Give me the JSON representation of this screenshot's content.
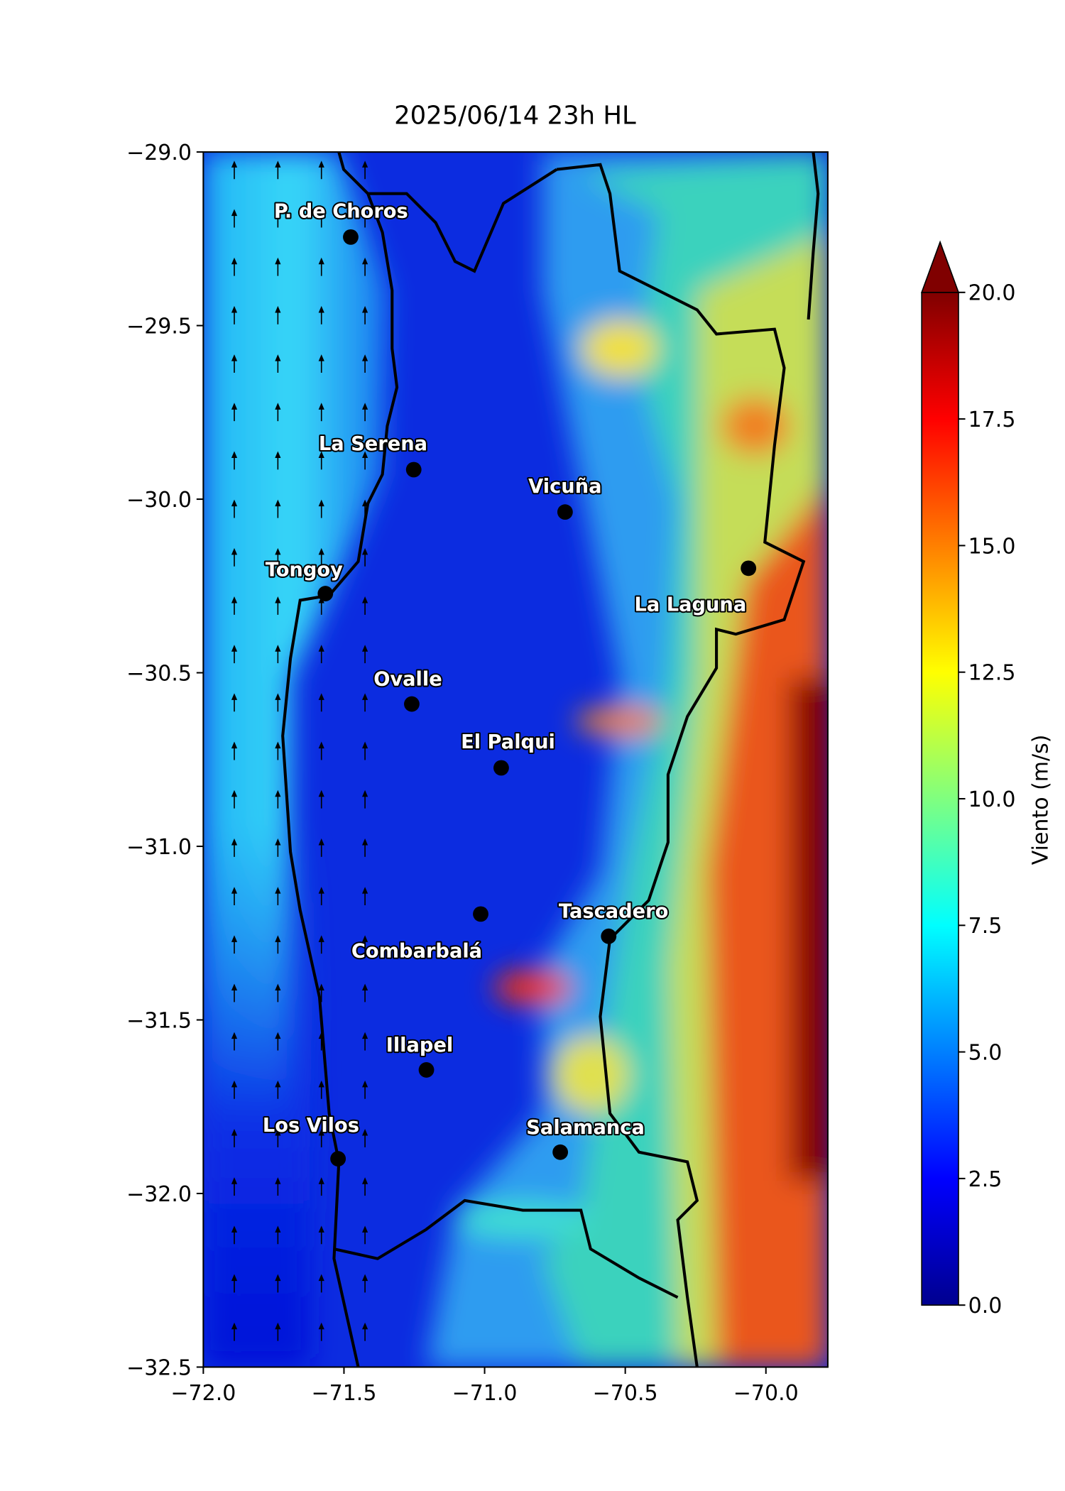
{
  "chart_data": {
    "type": "map",
    "title": "2025/06/14 23h HL",
    "xlim": [
      -72,
      -69.78
    ],
    "ylim": [
      -32.5,
      -29
    ],
    "xticks": [
      {
        "value": -72,
        "label": "−72.0"
      },
      {
        "value": -71.5,
        "label": "−71.5"
      },
      {
        "value": -71,
        "label": "−71.0"
      },
      {
        "value": -70.5,
        "label": "−70.5"
      },
      {
        "value": -70,
        "label": "−70.0"
      }
    ],
    "yticks": [
      {
        "value": -29,
        "label": "−29.0"
      },
      {
        "value": -29.5,
        "label": "−29.5"
      },
      {
        "value": -30,
        "label": "−30.0"
      },
      {
        "value": -30.5,
        "label": "−30.5"
      },
      {
        "value": -31,
        "label": "−31.0"
      },
      {
        "value": -31.5,
        "label": "−31.5"
      },
      {
        "value": -32,
        "label": "−32.0"
      },
      {
        "value": -32.5,
        "label": "−32.5"
      }
    ],
    "points": [
      {
        "name": "P. de Choros",
        "lon": -71.476,
        "lat": -29.245
      },
      {
        "name": "La Serena",
        "lon": -71.252,
        "lat": -29.915
      },
      {
        "name": "Vicuña",
        "lon": -70.714,
        "lat": -30.037
      },
      {
        "name": "La Laguna",
        "lon": -70.062,
        "lat": -30.199
      },
      {
        "name": "Tongoy",
        "lon": -71.566,
        "lat": -30.272
      },
      {
        "name": "Ovalle",
        "lon": -71.259,
        "lat": -30.59
      },
      {
        "name": "El Palqui",
        "lon": -70.941,
        "lat": -30.774
      },
      {
        "name": "Combarbalá",
        "lon": -71.014,
        "lat": -31.195
      },
      {
        "name": "Tascadero",
        "lon": -70.559,
        "lat": -31.259
      },
      {
        "name": "Illapel",
        "lon": -71.207,
        "lat": -31.644
      },
      {
        "name": "Los Vilos",
        "lon": -71.521,
        "lat": -31.9
      },
      {
        "name": "Salamanca",
        "lon": -70.731,
        "lat": -31.881
      }
    ],
    "colorbar": {
      "label": "Viento (m/s)",
      "lim": [
        0,
        20
      ],
      "colormap": "jet",
      "extend": "max",
      "ticks": [
        {
          "value": 0,
          "label": "0.0"
        },
        {
          "value": 2.5,
          "label": "2.5"
        },
        {
          "value": 5,
          "label": "5.0"
        },
        {
          "value": 7.5,
          "label": "7.5"
        },
        {
          "value": 10,
          "label": "10.0"
        },
        {
          "value": 12.5,
          "label": "12.5"
        },
        {
          "value": 15,
          "label": "15.0"
        },
        {
          "value": 17.5,
          "label": "17.5"
        },
        {
          "value": 20,
          "label": "20.0"
        }
      ]
    }
  }
}
